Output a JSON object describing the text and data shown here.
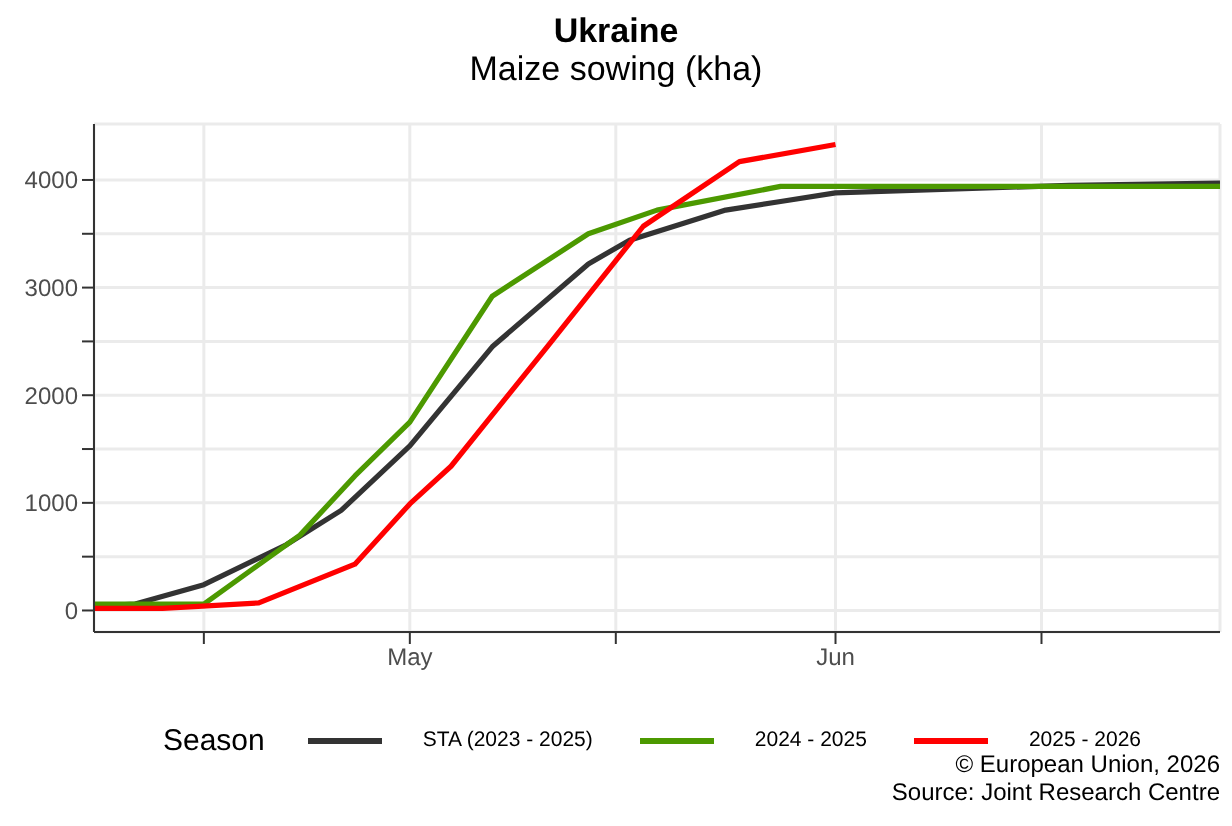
{
  "chart_data": {
    "type": "line",
    "title": "Ukraine",
    "subtitle": "Maize sowing (kha)",
    "legend_title": "Season",
    "legend": "bottom",
    "grid": true,
    "line_style": "solid",
    "marker": "none",
    "xlim": [
      "--04-08",
      "--06-29"
    ],
    "xticks": [
      {
        "value": "--04-16",
        "label": null
      },
      {
        "value": "--05-01",
        "label": "May"
      },
      {
        "value": "--05-16",
        "label": null
      },
      {
        "value": "--06-01",
        "label": "Jun"
      },
      {
        "value": "--06-16",
        "label": null
      }
    ],
    "ylim": [
      -200,
      4520
    ],
    "yticks": [
      0,
      {
        "value": 500,
        "label": null
      },
      1000,
      {
        "value": 1500,
        "label": null
      },
      2000,
      {
        "value": 2500,
        "label": null
      },
      3000,
      {
        "value": 3500,
        "label": null
      },
      4000
    ],
    "series": [
      {
        "name": "STA (2023 - 2025)",
        "color": "#333333",
        "x": [
          "--04-08",
          "--04-11",
          "--04-16",
          "--04-22",
          "--04-26",
          "--05-01",
          "--05-07",
          "--05-14",
          "--05-17",
          "--05-21",
          "--05-24",
          "--05-28",
          "--06-01",
          "--06-18",
          "--06-29"
        ],
        "values": [
          40,
          60,
          240,
          610,
          930,
          1530,
          2450,
          3220,
          3440,
          3600,
          3720,
          3800,
          3880,
          3950,
          3970
        ]
      },
      {
        "name": "2024 - 2025",
        "color": "#4c9900",
        "x": [
          "--04-08",
          "--04-16",
          "--04-23",
          "--04-27",
          "--05-01",
          "--05-07",
          "--05-14",
          "--05-19",
          "--05-28",
          "--06-29"
        ],
        "values": [
          60,
          60,
          700,
          1250,
          1750,
          2920,
          3500,
          3720,
          3940,
          3940
        ]
      },
      {
        "name": "2025 - 2026",
        "color": "#ff0000",
        "x": [
          "--04-08",
          "--04-13",
          "--04-20",
          "--04-27",
          "--05-01",
          "--05-04",
          "--05-11",
          "--05-18",
          "--05-25",
          "--06-01"
        ],
        "values": [
          20,
          20,
          70,
          430,
          990,
          1340,
          2450,
          3570,
          4170,
          4330
        ]
      }
    ],
    "annotations": [
      "© European Union, 2026",
      "Source: Joint Research Centre"
    ]
  }
}
